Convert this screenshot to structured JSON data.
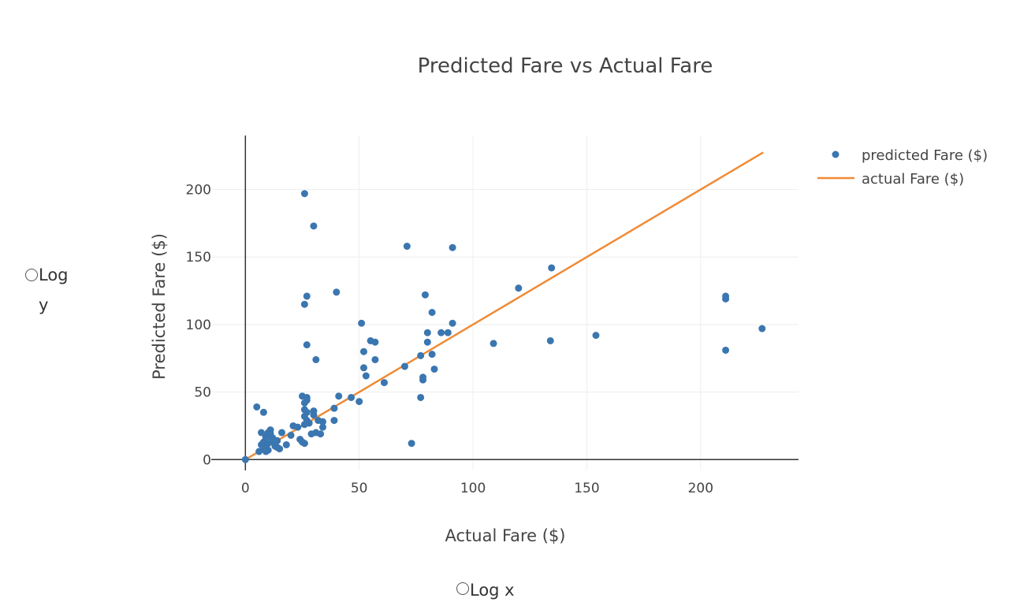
{
  "chart_data": {
    "type": "scatter",
    "title": "Predicted Fare vs Actual Fare",
    "xlabel": "Actual Fare ($)",
    "ylabel": "Predicted Fare ($)",
    "xlim": [
      -15,
      243
    ],
    "ylim": [
      -8,
      240
    ],
    "xticks": [
      0,
      50,
      100,
      150,
      200
    ],
    "yticks": [
      0,
      50,
      100,
      150,
      200
    ],
    "grid": true,
    "legend_position": "top-right",
    "colors": {
      "scatter": "#3a76b0",
      "line": "#f08a35",
      "grid": "#eeeeee",
      "axis": "#333333"
    },
    "series": [
      {
        "name": "predicted Fare ($)",
        "mode": "markers",
        "x": [
          0,
          5,
          8,
          7,
          6,
          8,
          9,
          10,
          9,
          11,
          10,
          12,
          13,
          14,
          15,
          13,
          12,
          11,
          10,
          9,
          8,
          7,
          9,
          10,
          12,
          14,
          16,
          18,
          20,
          21,
          23,
          24,
          25,
          26,
          26,
          27,
          26,
          27,
          28,
          25,
          26,
          27,
          26,
          27,
          29,
          30,
          30,
          31,
          32,
          33,
          34,
          34,
          39,
          39,
          41,
          46.5,
          50,
          26,
          30,
          27,
          26,
          27,
          31,
          40,
          51,
          52,
          53,
          55,
          57,
          57,
          52,
          61,
          70,
          71,
          73,
          77,
          77,
          78,
          78,
          79,
          80,
          80,
          82,
          82,
          83,
          86,
          89,
          91,
          91,
          109,
          120,
          134,
          134.5,
          154,
          211,
          211,
          211,
          227
        ],
        "y": [
          0,
          39,
          35,
          20,
          6,
          8,
          10,
          12,
          16,
          22,
          18,
          14,
          10,
          9,
          8,
          12,
          15,
          19,
          7,
          6,
          13,
          11,
          17,
          20,
          16,
          14,
          20,
          11,
          18,
          25,
          24,
          15,
          13,
          12,
          26,
          29,
          32,
          35,
          27,
          47,
          42,
          46,
          37,
          44,
          19,
          36,
          33,
          20,
          29,
          19,
          24,
          28,
          29,
          38,
          47,
          46,
          43,
          197,
          173,
          121,
          115,
          85,
          74,
          124,
          101,
          80,
          62,
          88,
          87,
          74,
          68,
          57,
          69,
          158,
          12,
          46,
          77,
          61,
          59,
          122,
          94,
          87,
          109,
          78,
          67,
          94,
          94,
          157,
          101,
          86,
          127,
          88,
          142,
          92,
          121,
          119,
          81,
          97
        ]
      },
      {
        "name": "actual Fare ($)",
        "mode": "lines",
        "x": [
          0,
          227.5
        ],
        "y": [
          0,
          227.5
        ]
      }
    ]
  },
  "controls": {
    "log_y_label": "Log y",
    "log_x_label": "Log x"
  }
}
